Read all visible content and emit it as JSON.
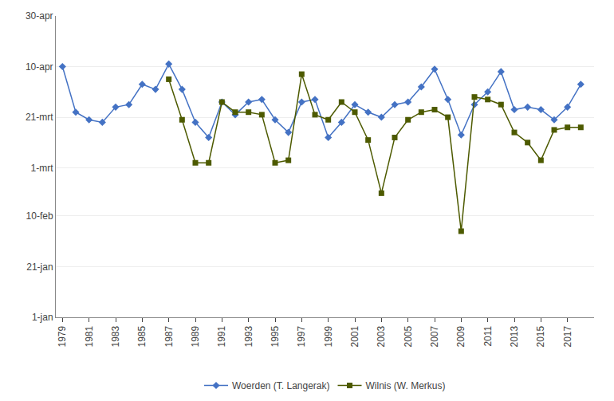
{
  "chart_data": {
    "type": "line",
    "x": [
      1979,
      1980,
      1981,
      1982,
      1983,
      1984,
      1985,
      1986,
      1987,
      1988,
      1989,
      1990,
      1991,
      1992,
      1993,
      1994,
      1995,
      1996,
      1997,
      1998,
      1999,
      2000,
      2001,
      2002,
      2003,
      2004,
      2005,
      2006,
      2007,
      2008,
      2009,
      2010,
      2011,
      2012,
      2013,
      2014,
      2015,
      2016,
      2017,
      2018
    ],
    "series": [
      {
        "name": "Woerden (T. Langerak)",
        "color": "#4472C4",
        "marker": "diamond",
        "values": [
          100,
          82,
          79,
          78,
          84,
          85,
          93,
          91,
          101,
          91,
          78,
          72,
          86,
          81,
          86,
          87,
          79,
          74,
          86,
          87,
          72,
          78,
          85,
          82,
          80,
          85,
          86,
          92,
          99,
          87,
          73,
          85,
          90,
          98,
          83,
          84,
          83,
          79,
          84,
          93
        ]
      },
      {
        "name": "Wilnis (W. Merkus)",
        "color": "#4D5A00",
        "marker": "square",
        "values": [
          null,
          null,
          null,
          null,
          null,
          null,
          null,
          null,
          95,
          79,
          62,
          62,
          86,
          82,
          82,
          81,
          62,
          63,
          97,
          81,
          79,
          86,
          82,
          71,
          50,
          72,
          79,
          82,
          83,
          80,
          35,
          88,
          87,
          85,
          74,
          70,
          63,
          75,
          76,
          76
        ]
      }
    ],
    "xlim": [
      1978.5,
      2019.0
    ],
    "xticks": [
      1979,
      1981,
      1983,
      1985,
      1987,
      1989,
      1991,
      1993,
      1995,
      1997,
      1999,
      2001,
      2003,
      2005,
      2007,
      2009,
      2011,
      2013,
      2015,
      2017
    ],
    "ylim": [
      1,
      120
    ],
    "yticks": [
      {
        "value": 1,
        "label": "1-jan"
      },
      {
        "value": 21,
        "label": "21-jan"
      },
      {
        "value": 41,
        "label": "10-feb"
      },
      {
        "value": 60,
        "label": "1-mrt"
      },
      {
        "value": 80,
        "label": "21-mrt"
      },
      {
        "value": 100,
        "label": "10-apr"
      },
      {
        "value": 120,
        "label": "30-apr"
      }
    ],
    "grid": true,
    "legend": "bottom"
  }
}
